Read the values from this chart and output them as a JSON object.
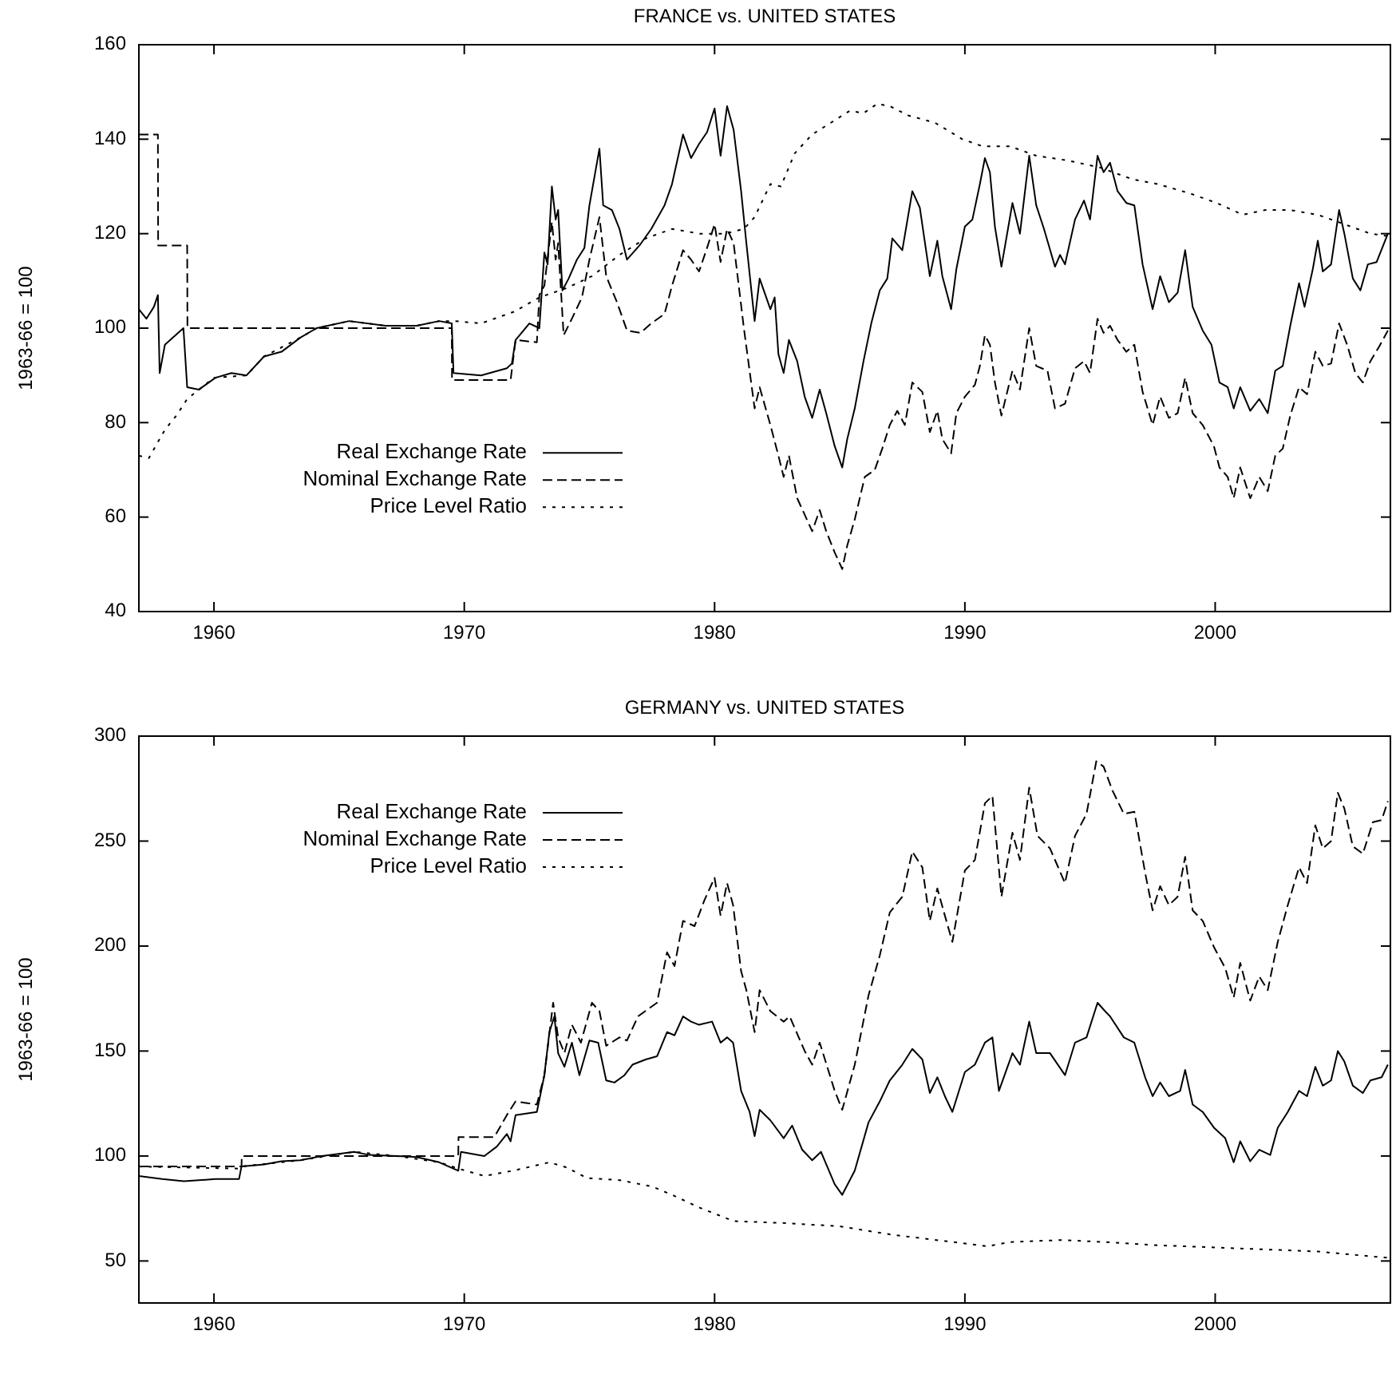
{
  "chart_data": [
    {
      "type": "line",
      "title": "FRANCE vs. UNITED STATES",
      "ylabel": "1963-66 = 100",
      "xlim": [
        1957,
        2007
      ],
      "xticks": [
        1960,
        1970,
        1980,
        1990,
        2000
      ],
      "ylim": [
        40,
        160
      ],
      "yticks": [
        40,
        60,
        80,
        100,
        120,
        140,
        160
      ],
      "grid": false,
      "legend": "left",
      "marker": "none",
      "series": [
        {
          "name": "Real Exchange Rate",
          "color": "#000000",
          "line_style": "solid",
          "x": [
            1957.0,
            1957.3,
            1957.6,
            1957.76,
            1957.83,
            1958.04,
            1958.36,
            1958.78,
            1958.93,
            1959.4,
            1960.06,
            1960.7,
            1961.3,
            1962.0,
            1962.7,
            1963.45,
            1964.1,
            1965.4,
            1966.85,
            1968.1,
            1969.0,
            1969.5,
            1969.57,
            1970.67,
            1971.7,
            1971.9,
            1972.05,
            1972.6,
            1973.0,
            1973.2,
            1973.33,
            1973.5,
            1973.65,
            1973.75,
            1973.92,
            1974.17,
            1974.5,
            1974.8,
            1975.0,
            1975.4,
            1975.55,
            1975.9,
            1976.2,
            1976.5,
            1977.0,
            1977.47,
            1978.0,
            1978.3,
            1978.74,
            1979.06,
            1979.38,
            1979.7,
            1980.0,
            1980.24,
            1980.5,
            1980.76,
            1981.06,
            1981.27,
            1981.6,
            1981.8,
            1982.23,
            1982.4,
            1982.55,
            1982.76,
            1982.97,
            1983.3,
            1983.6,
            1983.9,
            1984.2,
            1984.46,
            1984.8,
            1985.1,
            1985.3,
            1985.6,
            1985.95,
            1986.26,
            1986.6,
            1986.9,
            1987.1,
            1987.5,
            1987.9,
            1988.2,
            1988.6,
            1988.9,
            1989.1,
            1989.45,
            1989.66,
            1990.0,
            1990.3,
            1990.6,
            1990.8,
            1991.0,
            1991.2,
            1991.46,
            1991.9,
            1992.2,
            1992.57,
            1992.85,
            1993.16,
            1993.6,
            1993.8,
            1994.0,
            1994.4,
            1994.76,
            1995.0,
            1995.3,
            1995.54,
            1995.8,
            1996.1,
            1996.45,
            1996.77,
            1997.1,
            1997.5,
            1997.8,
            1998.15,
            1998.5,
            1998.8,
            1999.1,
            1999.5,
            1999.85,
            2000.17,
            2000.5,
            2000.74,
            2001.0,
            2001.4,
            2001.76,
            2002.1,
            2002.4,
            2002.7,
            2003.0,
            2003.35,
            2003.57,
            2003.9,
            2004.1,
            2004.3,
            2004.63,
            2004.95,
            2005.16,
            2005.5,
            2005.8,
            2006.1,
            2006.45,
            2006.9
          ],
          "values": [
            104,
            102,
            104.5,
            107,
            90.5,
            96.5,
            98,
            100,
            87.5,
            87,
            89.5,
            90.5,
            90,
            94,
            95,
            98,
            100,
            101.5,
            100.5,
            100.5,
            101.5,
            101,
            90.5,
            90,
            91.5,
            92.5,
            97.5,
            101,
            100,
            116,
            113.5,
            130,
            123,
            125,
            108,
            110.5,
            114.5,
            117,
            126,
            138,
            126,
            125,
            121,
            114.5,
            117.5,
            121,
            126,
            130.5,
            141,
            136,
            139,
            141.5,
            146.5,
            136.5,
            147,
            142,
            129,
            118,
            101.5,
            110.5,
            104,
            106.5,
            94.5,
            90.5,
            97.5,
            93,
            85.5,
            81,
            87,
            82,
            75,
            70.5,
            76.5,
            83,
            93,
            101,
            108,
            110.5,
            119,
            116.5,
            129,
            125.5,
            111,
            118.5,
            111,
            104,
            112.5,
            121.5,
            123,
            130.5,
            136,
            133,
            121.5,
            113,
            126.5,
            120,
            136.5,
            126,
            121,
            113,
            115.5,
            113.5,
            123,
            127,
            123,
            136.5,
            133,
            135,
            129,
            126.5,
            126,
            113.5,
            104,
            111,
            105.5,
            107.5,
            116.5,
            104.5,
            99.5,
            96.5,
            88.5,
            87.5,
            83,
            87.5,
            82.5,
            85,
            82,
            91,
            92,
            100.5,
            109.5,
            104.5,
            112.5,
            118.5,
            112,
            113.5,
            125,
            120,
            110.5,
            108,
            113.5,
            114,
            120
          ]
        },
        {
          "name": "Nominal Exchange Rate",
          "color": "#000000",
          "line_style": "dashed",
          "x": [
            1957.0,
            1957.76,
            1957.77,
            1958.93,
            1958.94,
            1969.5,
            1969.51,
            1971.85,
            1972.05,
            1972.9,
            1973.0,
            1973.2,
            1973.5,
            1973.65,
            1973.75,
            1973.97,
            1974.3,
            1974.7,
            1975.0,
            1975.4,
            1975.67,
            1976.1,
            1976.5,
            1977.04,
            1977.47,
            1978.0,
            1978.3,
            1978.74,
            1979.06,
            1979.38,
            1979.7,
            1980.0,
            1980.24,
            1980.5,
            1980.76,
            1981.17,
            1981.6,
            1981.8,
            1982.23,
            1982.55,
            1982.76,
            1982.97,
            1983.3,
            1983.6,
            1983.9,
            1984.2,
            1984.46,
            1984.8,
            1985.1,
            1985.3,
            1985.6,
            1986.0,
            1986.4,
            1986.7,
            1987.0,
            1987.3,
            1987.6,
            1987.9,
            1988.3,
            1988.6,
            1988.9,
            1989.1,
            1989.45,
            1989.66,
            1990.0,
            1990.4,
            1990.6,
            1990.8,
            1991.0,
            1991.2,
            1991.46,
            1991.9,
            1992.2,
            1992.57,
            1992.85,
            1993.3,
            1993.6,
            1994.0,
            1994.4,
            1994.76,
            1995.0,
            1995.3,
            1995.54,
            1995.8,
            1996.1,
            1996.45,
            1996.77,
            1997.1,
            1997.5,
            1997.8,
            1998.15,
            1998.5,
            1998.8,
            1999.1,
            1999.5,
            1999.95,
            2000.17,
            2000.5,
            2000.74,
            2001.0,
            2001.4,
            2001.76,
            2002.1,
            2002.4,
            2002.7,
            2003.0,
            2003.35,
            2003.67,
            2004.0,
            2004.3,
            2004.63,
            2004.95,
            2005.27,
            2005.6,
            2005.9,
            2006.2,
            2006.54,
            2006.9
          ],
          "values": [
            141,
            141,
            117.5,
            117.5,
            100,
            100,
            89,
            89,
            97.5,
            97,
            107,
            109,
            122.5,
            114.5,
            118,
            98.5,
            102,
            106.5,
            114.5,
            123.5,
            111,
            105.5,
            99.5,
            99,
            101,
            103,
            109,
            116.5,
            114.5,
            112,
            117,
            122,
            114,
            121,
            118,
            100,
            83,
            87.5,
            79.5,
            73,
            68.5,
            73,
            64,
            60.5,
            57,
            61.5,
            57,
            52.5,
            49,
            54,
            59.5,
            68.5,
            70,
            74.5,
            79.5,
            82.5,
            79.5,
            88.5,
            86.5,
            78,
            82.5,
            76.5,
            73.5,
            82,
            85.5,
            88,
            92,
            98.5,
            96.5,
            88.5,
            81.5,
            91,
            87,
            100,
            92,
            91,
            83,
            84,
            91.5,
            93,
            90.5,
            102,
            99,
            100.5,
            97.5,
            95,
            96.5,
            86.5,
            79.5,
            85.5,
            81,
            82,
            89.5,
            82,
            79.5,
            75,
            70.5,
            68.5,
            64,
            70.5,
            64,
            68.5,
            65.5,
            73,
            74.5,
            81.5,
            87.5,
            86,
            95,
            92,
            92.5,
            101,
            96.5,
            90.5,
            88.5,
            93,
            96,
            99.5
          ]
        },
        {
          "name": "Price Level Ratio",
          "color": "#000000",
          "line_style": "dotted",
          "x": [
            1957.0,
            1957.4,
            1958.04,
            1958.5,
            1958.93,
            1960.0,
            1961.3,
            1962.0,
            1963.45,
            1964.1,
            1965.4,
            1966.85,
            1968.1,
            1969.0,
            1969.6,
            1970.67,
            1972.0,
            1973.0,
            1974.1,
            1975.1,
            1976.2,
            1977.25,
            1978.3,
            1979.4,
            1980.44,
            1981.17,
            1981.6,
            1982.23,
            1982.65,
            1983.2,
            1983.9,
            1984.8,
            1985.4,
            1985.95,
            1986.5,
            1987.0,
            1987.75,
            1988.8,
            1989.9,
            1990.7,
            1991.8,
            1992.85,
            1994.1,
            1995.4,
            1996.7,
            1997.7,
            1999.0,
            2000.06,
            2001.1,
            2002.0,
            2003.0,
            2004.1,
            2005.16,
            2006.2,
            2006.9
          ],
          "values": [
            73,
            72.5,
            78.5,
            81.5,
            85,
            89.5,
            90,
            94,
            98,
            100,
            101.5,
            100.5,
            100.5,
            101.5,
            101.5,
            101,
            103.5,
            106.5,
            108.5,
            111,
            115.5,
            119,
            121,
            120,
            120,
            121,
            123.5,
            130.5,
            130,
            137,
            141,
            144,
            146,
            145.5,
            147.5,
            147,
            145,
            143.5,
            140,
            138.5,
            138.5,
            136.5,
            135.5,
            134,
            131.5,
            130.5,
            128.5,
            126.5,
            124,
            125,
            125,
            124,
            122,
            120,
            119.5
          ]
        }
      ]
    },
    {
      "type": "line",
      "title": "GERMANY vs. UNITED STATES",
      "ylabel": "1963-66 = 100",
      "xlim": [
        1957,
        2007
      ],
      "xticks": [
        1960,
        1970,
        1980,
        1990,
        2000
      ],
      "ylim": [
        30,
        300
      ],
      "yticks": [
        50,
        100,
        150,
        200,
        250,
        300
      ],
      "grid": false,
      "legend": "top left",
      "marker": "none",
      "series": [
        {
          "name": "Real Exchange Rate",
          "color": "#000000",
          "line_style": "solid",
          "x": [
            1957.0,
            1957.93,
            1958.8,
            1960.06,
            1961.0,
            1961.1,
            1962.0,
            1962.7,
            1963.45,
            1964.3,
            1965.6,
            1966.2,
            1967.3,
            1968.1,
            1969.0,
            1969.76,
            1969.87,
            1970.8,
            1971.3,
            1971.7,
            1971.85,
            1972.05,
            1972.9,
            1973.2,
            1973.4,
            1973.6,
            1973.75,
            1974.0,
            1974.3,
            1974.6,
            1975.0,
            1975.35,
            1975.67,
            1976.0,
            1976.4,
            1976.72,
            1977.25,
            1977.7,
            1978.1,
            1978.4,
            1978.74,
            1979.06,
            1979.38,
            1979.9,
            1980.24,
            1980.5,
            1980.74,
            1981.06,
            1981.4,
            1981.6,
            1981.8,
            1982.23,
            1982.76,
            1983.1,
            1983.5,
            1983.9,
            1984.25,
            1984.8,
            1985.1,
            1985.6,
            1986.15,
            1986.6,
            1987.0,
            1987.5,
            1987.9,
            1988.3,
            1988.6,
            1988.9,
            1989.2,
            1989.5,
            1990.0,
            1990.4,
            1990.8,
            1991.1,
            1991.36,
            1991.9,
            1992.2,
            1992.57,
            1992.85,
            1993.4,
            1994.0,
            1994.4,
            1994.86,
            1995.3,
            1995.6,
            1995.8,
            1996.35,
            1996.77,
            1997.2,
            1997.5,
            1997.8,
            1998.15,
            1998.6,
            1998.8,
            1999.1,
            1999.5,
            1999.95,
            2000.4,
            2000.74,
            2001.0,
            2001.4,
            2001.76,
            2002.2,
            2002.5,
            2002.9,
            2003.35,
            2003.67,
            2004.0,
            2004.3,
            2004.63,
            2004.9,
            2005.16,
            2005.5,
            2005.9,
            2006.2,
            2006.65,
            2006.9
          ],
          "values": [
            90.5,
            89,
            88,
            89,
            89,
            95,
            96,
            97.5,
            98,
            100,
            102,
            100.5,
            100,
            99.5,
            97,
            93,
            102,
            100,
            104.5,
            110.5,
            107,
            119.5,
            121,
            138.5,
            159,
            166.5,
            149,
            142.5,
            154,
            138.5,
            155,
            154,
            136,
            135,
            138.5,
            143.5,
            146,
            147.5,
            159,
            157.5,
            166.5,
            164,
            162.5,
            164,
            154,
            156.5,
            154,
            131,
            121,
            109.5,
            122,
            117,
            108.5,
            114.5,
            103,
            98,
            102,
            86.5,
            81.5,
            93,
            116,
            126,
            136,
            143.5,
            151,
            146,
            130,
            137.5,
            128.5,
            121,
            140,
            143.5,
            154,
            156.5,
            131,
            149,
            143.5,
            164,
            149,
            149,
            138.5,
            154,
            156.5,
            173,
            169,
            166.5,
            156.5,
            154,
            137.5,
            128.5,
            135,
            128.5,
            131,
            141,
            124.5,
            121,
            113.5,
            108.5,
            97,
            107,
            97.5,
            103,
            100.5,
            113.5,
            121,
            131,
            128.5,
            142.5,
            133.5,
            136,
            150,
            145,
            133.5,
            130,
            136,
            137.5,
            143.5
          ]
        },
        {
          "name": "Nominal Exchange Rate",
          "color": "#000000",
          "line_style": "dashed",
          "x": [
            1957.0,
            1961.1,
            1961.11,
            1969.76,
            1969.77,
            1971.2,
            1971.7,
            1972.05,
            1972.9,
            1973.2,
            1973.55,
            1973.75,
            1974.0,
            1974.3,
            1974.66,
            1975.1,
            1975.4,
            1975.67,
            1976.2,
            1976.5,
            1976.94,
            1977.7,
            1978.1,
            1978.4,
            1978.74,
            1979.2,
            1979.6,
            1980.0,
            1980.24,
            1980.5,
            1980.74,
            1981.06,
            1981.27,
            1981.6,
            1981.8,
            1982.23,
            1982.76,
            1983.0,
            1983.6,
            1983.9,
            1984.2,
            1984.8,
            1985.1,
            1985.6,
            1986.15,
            1986.6,
            1987.0,
            1987.5,
            1987.9,
            1988.3,
            1988.6,
            1988.9,
            1989.2,
            1989.5,
            1990.0,
            1990.4,
            1990.8,
            1991.1,
            1991.46,
            1991.9,
            1992.2,
            1992.57,
            1992.9,
            1993.4,
            1994.0,
            1994.4,
            1994.86,
            1995.25,
            1995.54,
            1995.9,
            1996.35,
            1996.77,
            1997.2,
            1997.5,
            1997.8,
            1998.15,
            1998.5,
            1998.8,
            1999.1,
            1999.5,
            1999.95,
            2000.4,
            2000.74,
            2001.0,
            2001.4,
            2001.76,
            2002.1,
            2002.5,
            2002.9,
            2003.35,
            2003.67,
            2004.0,
            2004.3,
            2004.63,
            2004.9,
            2005.16,
            2005.5,
            2005.9,
            2006.3,
            2006.65,
            2006.9
          ],
          "values": [
            95,
            95,
            100,
            100,
            109,
            109,
            119.5,
            126,
            124.5,
            138.5,
            173,
            156.5,
            149,
            162.5,
            154,
            173,
            169,
            152.5,
            156.5,
            155,
            166.5,
            173,
            197,
            190.5,
            212,
            209.5,
            222,
            232.5,
            214.5,
            230,
            219.5,
            188,
            179,
            159,
            179,
            169,
            164,
            166.5,
            150,
            143.5,
            154,
            131,
            122,
            143.5,
            176.5,
            195.5,
            216,
            223.5,
            245,
            237.5,
            212,
            227.5,
            214.5,
            202,
            236,
            241,
            268,
            271.5,
            223.5,
            254,
            241,
            275.5,
            252.5,
            246.5,
            230,
            252.5,
            263,
            288,
            285.5,
            274,
            263,
            264,
            235,
            217,
            228.5,
            219.5,
            223.5,
            242.5,
            217,
            212,
            199.5,
            189.5,
            175.5,
            192,
            174,
            185.5,
            179,
            202,
            219.5,
            237.5,
            230,
            257.5,
            246.5,
            250,
            273,
            265.5,
            247.5,
            244,
            259,
            260,
            269
          ]
        },
        {
          "name": "Price Level Ratio",
          "color": "#000000",
          "line_style": "dotted",
          "x": [
            1957.0,
            1961.0,
            1961.1,
            1963.45,
            1965.6,
            1967.3,
            1969.0,
            1969.76,
            1970.8,
            1971.95,
            1973.4,
            1974.1,
            1974.9,
            1976.2,
            1977.5,
            1978.3,
            1979.38,
            1980.44,
            1980.74,
            1982.9,
            1985.0,
            1987.1,
            1989.2,
            1990.9,
            1991.8,
            1993.9,
            1995.6,
            1997.7,
            1999.85,
            2002.0,
            2004.1,
            2006.9
          ],
          "values": [
            95,
            94,
            95,
            98,
            102,
            100,
            97,
            94,
            90.5,
            93,
            97,
            94.5,
            89.5,
            88.5,
            85.5,
            81.5,
            75.5,
            70.5,
            69,
            68,
            66.5,
            62.5,
            59.5,
            57,
            59,
            60,
            59,
            57.5,
            56.5,
            55.5,
            54.5,
            51.5
          ]
        }
      ]
    }
  ]
}
